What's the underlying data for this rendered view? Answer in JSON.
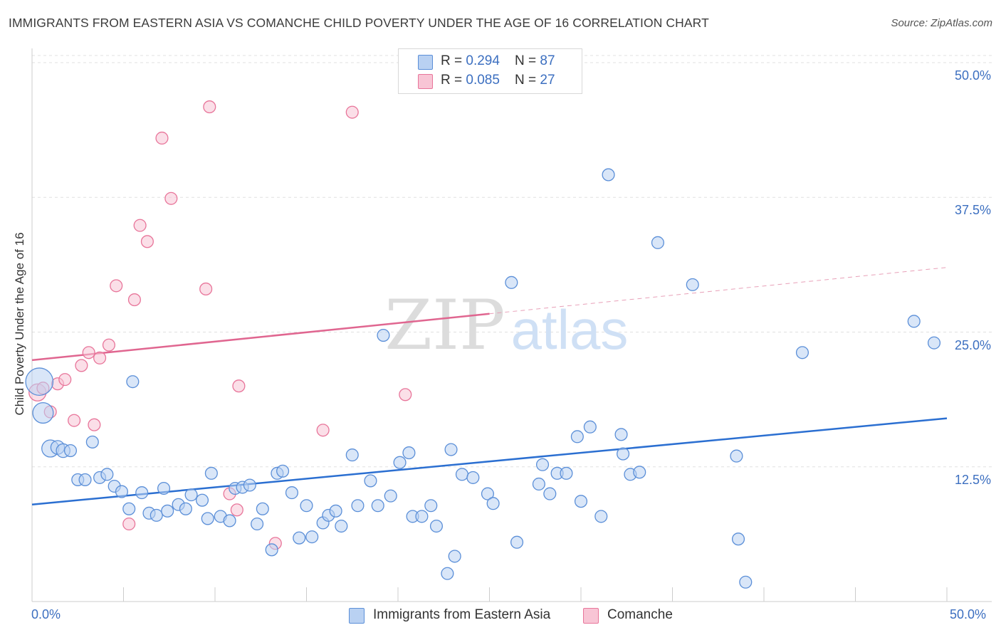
{
  "header": {
    "title": "IMMIGRANTS FROM EASTERN ASIA VS COMANCHE CHILD POVERTY UNDER THE AGE OF 16 CORRELATION CHART",
    "source": "Source: ZipAtlas.com"
  },
  "colors": {
    "blue": "#5b8fd8",
    "blue_fill": "#b9d1f2",
    "blue_line": "#2b6fd1",
    "pink": "#e8759a",
    "pink_fill": "#f8c5d5",
    "pink_line": "#e06690",
    "tick_text": "#3c6fc0"
  },
  "legend_top": {
    "rows": [
      {
        "r_label": "R = ",
        "r_value": "0.294",
        "n_label": "N = ",
        "n_value": "87"
      },
      {
        "r_label": "R = ",
        "r_value": "0.085",
        "n_label": "N = ",
        "n_value": "27"
      }
    ]
  },
  "legend_bottom": {
    "items": [
      "Immigrants from Eastern Asia",
      "Comanche"
    ]
  },
  "watermark": {
    "zip": "ZIP",
    "atlas": "atlas"
  },
  "chart_data": {
    "type": "scatter",
    "title": "IMMIGRANTS FROM EASTERN ASIA VS COMANCHE CHILD POVERTY UNDER THE AGE OF 16 CORRELATION CHART",
    "xlabel": "",
    "ylabel": "Child Poverty Under the Age of 16",
    "xlim": [
      0,
      50
    ],
    "ylim": [
      0,
      50
    ],
    "x_tick_labels": [
      "0.0%",
      "50.0%"
    ],
    "y_tick_labels": [
      "12.5%",
      "25.0%",
      "37.5%",
      "50.0%"
    ],
    "y_ticks": [
      12.5,
      25.0,
      37.5,
      50.0
    ],
    "x_minor_ticks": [
      5,
      10,
      15,
      20,
      25,
      30,
      35,
      40,
      45,
      50
    ],
    "grid": true,
    "legend_position": "top-center",
    "series": [
      {
        "name": "Immigrants from Eastern Asia",
        "color": "#5b8fd8",
        "trend": {
          "x0": 0,
          "y0": 9.0,
          "x1": 50,
          "y1": 17.0
        },
        "points": [
          [
            0.4,
            20.4,
            1.6
          ],
          [
            0.6,
            17.5,
            1.2
          ],
          [
            1.0,
            14.2,
            1.0
          ],
          [
            1.4,
            14.3,
            0.8
          ],
          [
            1.7,
            14.0,
            0.8
          ],
          [
            2.1,
            14.0,
            0.7
          ],
          [
            2.5,
            11.3,
            0.7
          ],
          [
            2.9,
            11.3,
            0.7
          ],
          [
            3.3,
            14.8,
            0.7
          ],
          [
            3.7,
            11.5,
            0.7
          ],
          [
            4.1,
            11.8,
            0.7
          ],
          [
            4.5,
            10.7,
            0.7
          ],
          [
            4.9,
            10.2,
            0.7
          ],
          [
            5.3,
            8.6,
            0.7
          ],
          [
            5.5,
            20.4,
            0.7
          ],
          [
            6.0,
            10.1,
            0.7
          ],
          [
            6.4,
            8.2,
            0.7
          ],
          [
            6.8,
            8.0,
            0.7
          ],
          [
            7.2,
            10.5,
            0.7
          ],
          [
            7.4,
            8.4,
            0.7
          ],
          [
            8.0,
            9.0,
            0.7
          ],
          [
            8.4,
            8.6,
            0.7
          ],
          [
            8.7,
            9.9,
            0.7
          ],
          [
            9.3,
            9.4,
            0.7
          ],
          [
            9.6,
            7.7,
            0.7
          ],
          [
            9.8,
            11.9,
            0.7
          ],
          [
            10.3,
            7.9,
            0.7
          ],
          [
            10.8,
            7.5,
            0.7
          ],
          [
            11.1,
            10.5,
            0.7
          ],
          [
            11.5,
            10.6,
            0.7
          ],
          [
            11.9,
            10.8,
            0.7
          ],
          [
            12.3,
            7.2,
            0.7
          ],
          [
            12.6,
            8.6,
            0.7
          ],
          [
            13.1,
            4.8,
            0.7
          ],
          [
            13.4,
            11.9,
            0.7
          ],
          [
            13.7,
            12.1,
            0.7
          ],
          [
            14.2,
            10.1,
            0.7
          ],
          [
            14.6,
            5.9,
            0.7
          ],
          [
            15.0,
            8.9,
            0.7
          ],
          [
            15.3,
            6.0,
            0.7
          ],
          [
            15.9,
            7.3,
            0.7
          ],
          [
            16.2,
            8.0,
            0.7
          ],
          [
            16.6,
            8.4,
            0.7
          ],
          [
            16.9,
            7.0,
            0.7
          ],
          [
            17.5,
            13.6,
            0.7
          ],
          [
            17.8,
            8.9,
            0.7
          ],
          [
            18.5,
            11.2,
            0.7
          ],
          [
            18.9,
            8.9,
            0.7
          ],
          [
            19.2,
            24.7,
            0.7
          ],
          [
            19.6,
            9.8,
            0.7
          ],
          [
            20.1,
            12.9,
            0.7
          ],
          [
            20.6,
            13.8,
            0.7
          ],
          [
            20.8,
            7.9,
            0.7
          ],
          [
            21.3,
            7.9,
            0.7
          ],
          [
            21.8,
            8.9,
            0.7
          ],
          [
            22.1,
            7.0,
            0.7
          ],
          [
            22.7,
            2.6,
            0.7
          ],
          [
            22.9,
            14.1,
            0.7
          ],
          [
            23.1,
            4.2,
            0.7
          ],
          [
            23.5,
            11.8,
            0.7
          ],
          [
            24.1,
            11.5,
            0.7
          ],
          [
            24.9,
            10.0,
            0.7
          ],
          [
            25.2,
            9.1,
            0.7
          ],
          [
            26.2,
            29.6,
            0.7
          ],
          [
            26.5,
            5.5,
            0.7
          ],
          [
            27.7,
            10.9,
            0.7
          ],
          [
            27.9,
            12.7,
            0.7
          ],
          [
            28.3,
            10.0,
            0.7
          ],
          [
            28.7,
            11.9,
            0.7
          ],
          [
            29.2,
            11.9,
            0.7
          ],
          [
            29.8,
            15.3,
            0.7
          ],
          [
            30.0,
            9.3,
            0.7
          ],
          [
            30.5,
            16.2,
            0.7
          ],
          [
            31.1,
            7.9,
            0.7
          ],
          [
            31.5,
            39.6,
            0.7
          ],
          [
            32.2,
            15.5,
            0.7
          ],
          [
            32.3,
            13.7,
            0.7
          ],
          [
            32.7,
            11.8,
            0.7
          ],
          [
            33.2,
            12.0,
            0.7
          ],
          [
            34.2,
            33.3,
            0.7
          ],
          [
            36.1,
            29.4,
            0.7
          ],
          [
            38.5,
            13.5,
            0.7
          ],
          [
            38.6,
            5.8,
            0.7
          ],
          [
            39.0,
            1.8,
            0.7
          ],
          [
            42.1,
            23.1,
            0.7
          ],
          [
            48.2,
            26.0,
            0.7
          ],
          [
            49.3,
            24.0,
            0.7
          ]
        ]
      },
      {
        "name": "Comanche",
        "color": "#e8759a",
        "trend": {
          "x0": 0,
          "y0": 22.4,
          "x1": 50,
          "y1": 31.0,
          "solid_until": 25
        },
        "points": [
          [
            0.3,
            19.4,
            1.0
          ],
          [
            0.6,
            19.8,
            0.7
          ],
          [
            1.0,
            17.6,
            0.7
          ],
          [
            1.4,
            20.2,
            0.7
          ],
          [
            1.8,
            20.6,
            0.7
          ],
          [
            2.3,
            16.8,
            0.7
          ],
          [
            2.7,
            21.9,
            0.7
          ],
          [
            3.1,
            23.1,
            0.7
          ],
          [
            3.4,
            16.4,
            0.7
          ],
          [
            3.7,
            22.6,
            0.7
          ],
          [
            4.2,
            23.8,
            0.7
          ],
          [
            4.6,
            29.3,
            0.7
          ],
          [
            5.3,
            7.2,
            0.7
          ],
          [
            5.6,
            28.0,
            0.7
          ],
          [
            5.9,
            34.9,
            0.7
          ],
          [
            6.3,
            33.4,
            0.7
          ],
          [
            7.1,
            43.0,
            0.7
          ],
          [
            7.6,
            37.4,
            0.7
          ],
          [
            9.5,
            29.0,
            0.7
          ],
          [
            9.7,
            45.9,
            0.7
          ],
          [
            10.8,
            10.0,
            0.7
          ],
          [
            11.2,
            8.5,
            0.7
          ],
          [
            11.3,
            20.0,
            0.7
          ],
          [
            13.3,
            5.4,
            0.7
          ],
          [
            15.9,
            15.9,
            0.7
          ],
          [
            17.5,
            45.4,
            0.7
          ],
          [
            20.4,
            19.2,
            0.7
          ]
        ]
      }
    ]
  }
}
